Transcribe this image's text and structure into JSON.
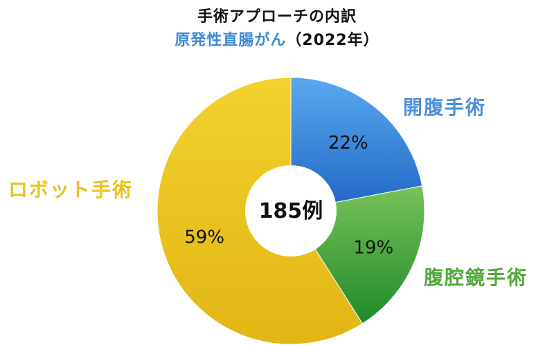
{
  "title": "手術アプローチの内訳",
  "subtitle": {
    "main": "原発性直腸がん",
    "paren": "（2022年）"
  },
  "center_label": "185例",
  "colors": {
    "open": "#4a90d9",
    "laparoscopic": "#4fa83a",
    "robotic": "#e8c21c",
    "subtitle": "#3a8ad6",
    "center_circle": "#ffffff"
  },
  "chart_data": {
    "type": "pie",
    "style": "donut",
    "title": "手術アプローチの内訳",
    "subtitle": "原発性直腸がん（2022年）",
    "total": 185,
    "total_unit": "例",
    "start": "12 o'clock, clockwise",
    "categories": [
      "開腹手術",
      "腹腔鏡手術",
      "ロボット手術"
    ],
    "values": [
      22,
      19,
      59
    ],
    "value_labels": [
      "22%",
      "19%",
      "59%"
    ],
    "colors": [
      "#4a90d9",
      "#4fa83a",
      "#e8c21c"
    ],
    "legend": "none (labels beside slices)"
  }
}
